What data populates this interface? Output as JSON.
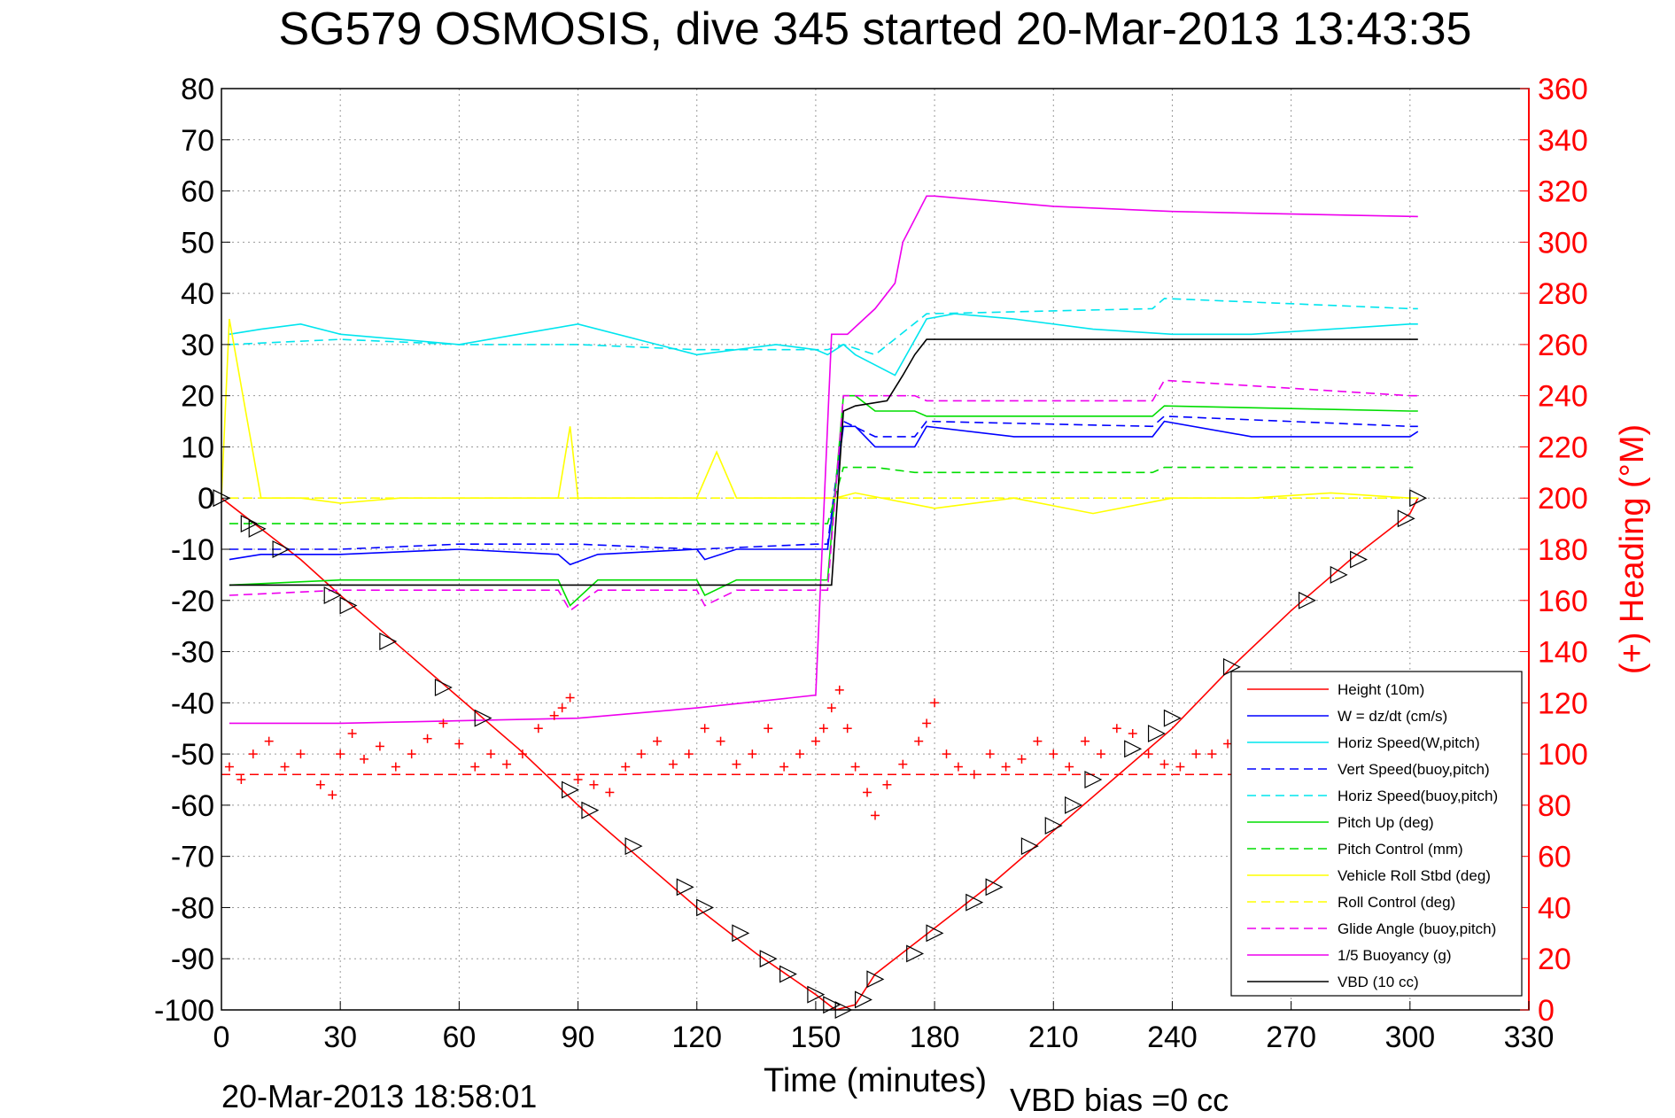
{
  "page": {
    "title": "SG579 OSMOSIS, dive 345 started 20-Mar-2013 13:43:35",
    "footer_timestamp": "20-Mar-2013 18:58:01",
    "vbd_bias": "VBD bias =0 cc"
  },
  "chart_data": {
    "type": "line",
    "title": "SG579 OSMOSIS, dive 345 started 20-Mar-2013 13:43:35",
    "xlabel": "Time (minutes)",
    "ylabel": "",
    "ylabel_right": "(+) Heading (°M)",
    "xlim": [
      0,
      330
    ],
    "ylim": [
      -100,
      80
    ],
    "ylim_right": [
      0,
      360
    ],
    "x_ticks": [
      "0",
      "30",
      "60",
      "90",
      "120",
      "150",
      "180",
      "210",
      "240",
      "270",
      "300",
      "330"
    ],
    "y_ticks": [
      "80",
      "70",
      "60",
      "50",
      "40",
      "30",
      "20",
      "10",
      "0",
      "-10",
      "-20",
      "-30",
      "-40",
      "-50",
      "-60",
      "-70",
      "-80",
      "-90",
      "-100"
    ],
    "y_right_ticks": [
      "360",
      "340",
      "320",
      "300",
      "280",
      "260",
      "240",
      "220",
      "200",
      "180",
      "160",
      "140",
      "120",
      "100",
      "80",
      "60",
      "40",
      "20",
      "0"
    ],
    "grid": true,
    "legend_position": "bottom-right",
    "series": [
      {
        "name": "Height (10m)",
        "color": "#ff0000",
        "style": "solid",
        "x": [
          0,
          10,
          20,
          30,
          45,
          60,
          75,
          90,
          105,
          120,
          135,
          150,
          155,
          160,
          165,
          180,
          195,
          210,
          225,
          240,
          255,
          270,
          285,
          300,
          302
        ],
        "y": [
          0,
          -6,
          -12,
          -19,
          -29,
          -39,
          -49,
          -60,
          -70,
          -80,
          -89,
          -97,
          -100,
          -99,
          -93,
          -84,
          -75,
          -65,
          -55,
          -45,
          -33,
          -22,
          -12,
          -3,
          0
        ]
      },
      {
        "name": "W = dz/dt (cm/s)",
        "color": "#0000ff",
        "style": "solid",
        "x": [
          2,
          10,
          30,
          60,
          85,
          88,
          95,
          120,
          122,
          130,
          150,
          153,
          157,
          160,
          165,
          175,
          178,
          200,
          235,
          238,
          260,
          300,
          302
        ],
        "y": [
          -12,
          -11,
          -11,
          -10,
          -11,
          -13,
          -11,
          -10,
          -12,
          -10,
          -10,
          -10,
          14,
          14,
          10,
          10,
          14,
          12,
          12,
          15,
          12,
          12,
          13
        ]
      },
      {
        "name": "Horiz Speed(W,pitch)",
        "color": "#00e5ee",
        "style": "solid",
        "x": [
          2,
          10,
          20,
          30,
          45,
          60,
          75,
          90,
          105,
          115,
          120,
          130,
          140,
          150,
          153,
          157,
          160,
          170,
          178,
          185,
          200,
          220,
          240,
          260,
          280,
          300,
          302
        ],
        "y": [
          32,
          33,
          34,
          32,
          31,
          30,
          32,
          34,
          31,
          29,
          28,
          29,
          30,
          29,
          28,
          30,
          28,
          24,
          35,
          36,
          35,
          33,
          32,
          32,
          33,
          34,
          34
        ]
      },
      {
        "name": "Vert Speed(buoy,pitch)",
        "color": "#0000ff",
        "style": "dashed",
        "x": [
          2,
          30,
          60,
          90,
          120,
          150,
          153,
          157,
          165,
          175,
          178,
          235,
          238,
          300,
          302
        ],
        "y": [
          -10,
          -10,
          -9,
          -9,
          -10,
          -9,
          -9,
          15,
          12,
          12,
          15,
          14,
          16,
          14,
          14
        ]
      },
      {
        "name": "Horiz Speed(buoy,pitch)",
        "color": "#00e5ee",
        "style": "dashed",
        "x": [
          2,
          30,
          60,
          90,
          120,
          150,
          153,
          157,
          165,
          178,
          235,
          238,
          300,
          302
        ],
        "y": [
          30,
          31,
          30,
          30,
          29,
          29,
          29,
          30,
          28,
          36,
          37,
          39,
          37,
          37
        ]
      },
      {
        "name": "Pitch Up (deg)",
        "color": "#00dd00",
        "style": "solid",
        "x": [
          2,
          30,
          60,
          85,
          88,
          95,
          120,
          122,
          130,
          150,
          153,
          157,
          160,
          165,
          175,
          178,
          235,
          238,
          300,
          302
        ],
        "y": [
          -17,
          -16,
          -16,
          -16,
          -21,
          -16,
          -16,
          -19,
          -16,
          -16,
          -16,
          20,
          20,
          17,
          17,
          16,
          16,
          18,
          17,
          17
        ]
      },
      {
        "name": "Pitch Control (mm)",
        "color": "#00dd00",
        "style": "dashed",
        "x": [
          2,
          150,
          153,
          157,
          165,
          175,
          178,
          235,
          238,
          302
        ],
        "y": [
          -5,
          -5,
          -5,
          6,
          6,
          5,
          5,
          5,
          6,
          6
        ]
      },
      {
        "name": "Vehicle Roll Stbd (deg)",
        "color": "#ffff00",
        "style": "solid",
        "x": [
          0,
          2,
          10,
          20,
          30,
          45,
          60,
          85,
          88,
          90,
          105,
          120,
          125,
          130,
          150,
          155,
          160,
          180,
          200,
          220,
          240,
          260,
          280,
          300,
          302
        ],
        "y": [
          0,
          35,
          0,
          0,
          -1,
          0,
          0,
          0,
          14,
          0,
          0,
          0,
          9,
          0,
          0,
          0,
          1,
          -2,
          0,
          -3,
          0,
          0,
          1,
          0,
          0
        ]
      },
      {
        "name": "Roll Control (deg)",
        "color": "#ffff00",
        "style": "dashed",
        "x": [
          2,
          150,
          155,
          302
        ],
        "y": [
          0,
          0,
          0,
          0
        ]
      },
      {
        "name": "Glide Angle (buoy,pitch)",
        "color": "#ee00ee",
        "style": "dashed",
        "x": [
          2,
          30,
          60,
          85,
          88,
          95,
          120,
          122,
          130,
          150,
          153,
          157,
          165,
          175,
          178,
          235,
          238,
          300,
          302
        ],
        "y": [
          -19,
          -18,
          -18,
          -18,
          -22,
          -18,
          -18,
          -21,
          -18,
          -18,
          -18,
          20,
          20,
          20,
          19,
          19,
          23,
          20,
          20
        ]
      },
      {
        "name": "1/5 Buoyancy (g)",
        "color": "#ee00ee",
        "style": "solid",
        "x": [
          2,
          5,
          30,
          60,
          90,
          120,
          150,
          154,
          158,
          165,
          170,
          172,
          178,
          180,
          210,
          240,
          270,
          302
        ],
        "y": [
          -44,
          -44,
          -44,
          -43.5,
          -43,
          -41,
          -38.5,
          32,
          32,
          37,
          42,
          50,
          59,
          59,
          57,
          56,
          55.5,
          55
        ]
      },
      {
        "name": "VBD (10 cc)",
        "color": "#000000",
        "style": "solid",
        "x": [
          2,
          5,
          30,
          60,
          90,
          120,
          154,
          157,
          160,
          168,
          172,
          175,
          178,
          180,
          210,
          240,
          270,
          302
        ],
        "y": [
          -17,
          -17,
          -17,
          -17,
          -17,
          -17,
          -17,
          17,
          18,
          19,
          24,
          28,
          31,
          31,
          31,
          31,
          31,
          31
        ]
      }
    ],
    "heading_series": {
      "name": "Heading (°M)",
      "axis": "right",
      "color": "#ff0000",
      "marker": "+",
      "mean": 92,
      "x": [
        2,
        5,
        8,
        12,
        16,
        20,
        25,
        28,
        30,
        33,
        36,
        40,
        44,
        48,
        52,
        56,
        60,
        64,
        68,
        72,
        76,
        80,
        84,
        86,
        88,
        90,
        94,
        98,
        102,
        106,
        110,
        114,
        118,
        122,
        126,
        130,
        134,
        138,
        142,
        146,
        150,
        152,
        154,
        156,
        158,
        160,
        163,
        165,
        168,
        172,
        176,
        178,
        180,
        183,
        186,
        190,
        194,
        198,
        202,
        206,
        210,
        214,
        218,
        222,
        226,
        230,
        234,
        238,
        242,
        246,
        250,
        254
      ],
      "y": [
        95,
        90,
        100,
        105,
        95,
        100,
        88,
        84,
        100,
        108,
        98,
        103,
        95,
        100,
        106,
        112,
        104,
        95,
        100,
        96,
        100,
        110,
        115,
        118,
        122,
        90,
        88,
        85,
        95,
        100,
        105,
        96,
        100,
        110,
        105,
        96,
        100,
        110,
        95,
        100,
        105,
        110,
        118,
        125,
        110,
        95,
        85,
        76,
        88,
        96,
        105,
        112,
        120,
        100,
        95,
        92,
        100,
        95,
        98,
        105,
        100,
        95,
        105,
        100,
        110,
        108,
        100,
        96,
        95,
        100,
        100,
        104
      ]
    },
    "depth_markers": {
      "x": [
        0,
        7,
        9,
        15,
        28,
        32,
        42,
        56,
        66,
        88,
        93,
        104,
        117,
        122,
        131,
        138,
        143,
        150,
        154,
        157,
        162,
        165,
        175,
        180,
        190,
        195,
        204,
        210,
        215,
        220,
        230,
        236,
        240,
        255,
        274,
        282,
        287,
        299,
        302
      ],
      "y": [
        0,
        -5,
        -6,
        -10,
        -19,
        -21,
        -28,
        -37,
        -43,
        -57,
        -61,
        -68,
        -76,
        -80,
        -85,
        -90,
        -93,
        -97,
        -99,
        -100,
        -98,
        -94,
        -89,
        -85,
        -79,
        -76,
        -68,
        -64,
        -60,
        -55,
        -49,
        -46,
        -43,
        -33,
        -20,
        -15,
        -12,
        -4,
        0
      ]
    }
  }
}
